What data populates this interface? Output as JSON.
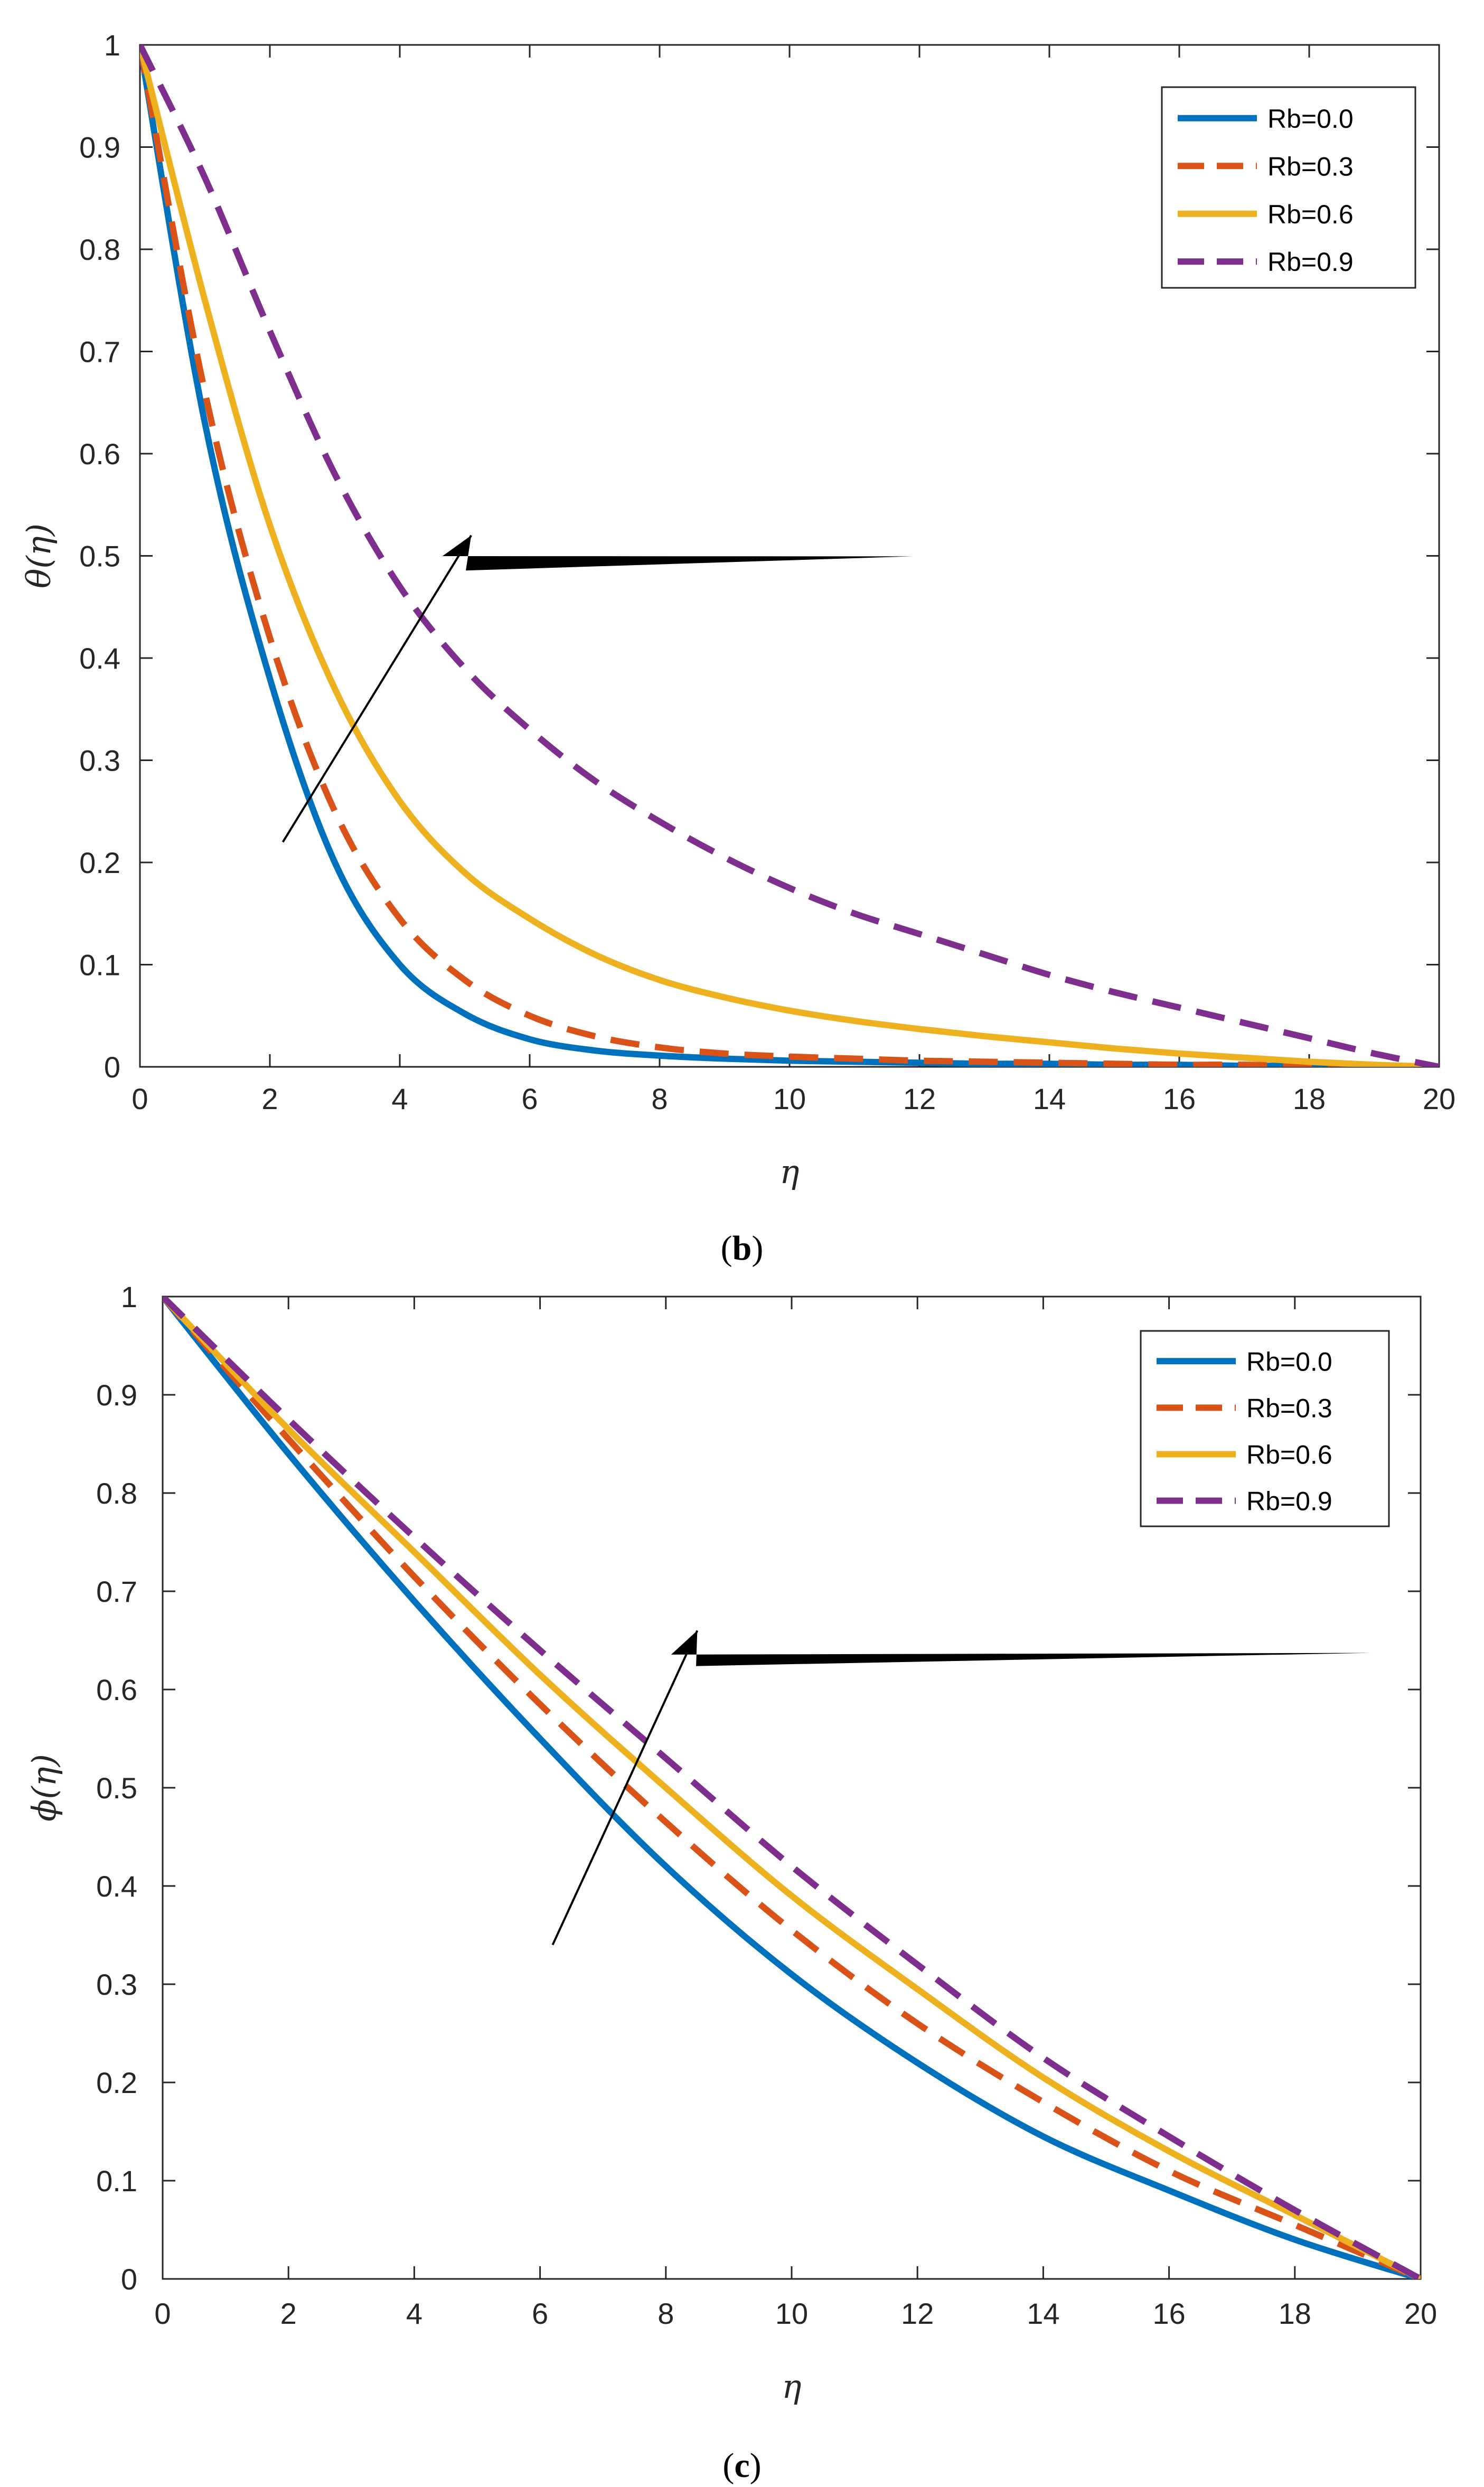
{
  "chart_data": [
    {
      "type": "line",
      "panel": "b",
      "caption": {
        "open": "(",
        "letter": "b",
        "close": ")"
      },
      "xlabel": "η",
      "ylabel": "θ(η)",
      "xlim": [
        0,
        20
      ],
      "ylim": [
        0,
        1
      ],
      "xticks": [
        0,
        2,
        4,
        6,
        8,
        10,
        12,
        14,
        16,
        18,
        20
      ],
      "yticks": [
        0,
        0.1,
        0.2,
        0.3,
        0.4,
        0.5,
        0.6,
        0.7,
        0.8,
        0.9,
        1
      ],
      "legend_position": "top-right",
      "x": [
        0,
        1,
        2,
        3,
        4,
        5,
        6,
        7,
        8,
        9,
        10,
        11,
        12,
        13,
        14,
        15,
        16,
        17,
        18,
        19,
        20
      ],
      "series": [
        {
          "name": "Rb=0.0",
          "color": "#0072BD",
          "style": "solid",
          "values": [
            1.0,
            0.63,
            0.38,
            0.2,
            0.1,
            0.052,
            0.027,
            0.016,
            0.011,
            0.008,
            0.006,
            0.005,
            0.004,
            0.003,
            0.003,
            0.002,
            0.002,
            0.001,
            0.001,
            0.0005,
            0
          ]
        },
        {
          "name": "Rb=0.3",
          "color": "#D95319",
          "style": "dashed",
          "values": [
            1.0,
            0.66,
            0.42,
            0.25,
            0.145,
            0.085,
            0.05,
            0.03,
            0.019,
            0.013,
            0.01,
            0.008,
            0.006,
            0.005,
            0.004,
            0.003,
            0.002,
            0.002,
            0.001,
            0.0005,
            0
          ]
        },
        {
          "name": "Rb=0.6",
          "color": "#EDB120",
          "style": "solid",
          "values": [
            1.0,
            0.75,
            0.53,
            0.37,
            0.26,
            0.19,
            0.145,
            0.11,
            0.085,
            0.068,
            0.055,
            0.045,
            0.037,
            0.03,
            0.024,
            0.018,
            0.013,
            0.009,
            0.005,
            0.002,
            0
          ]
        },
        {
          "name": "Rb=0.9",
          "color": "#7E2F8E",
          "style": "dashed",
          "values": [
            1.0,
            0.87,
            0.72,
            0.58,
            0.47,
            0.39,
            0.33,
            0.28,
            0.24,
            0.205,
            0.175,
            0.15,
            0.13,
            0.11,
            0.09,
            0.073,
            0.058,
            0.043,
            0.028,
            0.013,
            0
          ]
        }
      ],
      "annotation": {
        "type": "arrow",
        "from": [
          2.2,
          0.22
        ],
        "to": [
          5.1,
          0.52
        ]
      }
    },
    {
      "type": "line",
      "panel": "c",
      "caption": {
        "open": "(",
        "letter": "c",
        "close": ")"
      },
      "xlabel": "η",
      "ylabel": "ϕ(η)",
      "xlim": [
        0,
        20
      ],
      "ylim": [
        0,
        1
      ],
      "xticks": [
        0,
        2,
        4,
        6,
        8,
        10,
        12,
        14,
        16,
        18,
        20
      ],
      "yticks": [
        0,
        0.1,
        0.2,
        0.3,
        0.4,
        0.5,
        0.6,
        0.7,
        0.8,
        0.9,
        1
      ],
      "legend_position": "top-right",
      "x": [
        0,
        2,
        4,
        6,
        8,
        10,
        12,
        14,
        16,
        18,
        20
      ],
      "series": [
        {
          "name": "Rb=0.0",
          "color": "#0072BD",
          "style": "solid",
          "values": [
            1.0,
            0.84,
            0.69,
            0.55,
            0.42,
            0.31,
            0.22,
            0.145,
            0.09,
            0.04,
            0
          ]
        },
        {
          "name": "Rb=0.3",
          "color": "#D95319",
          "style": "dashed",
          "values": [
            1.0,
            0.855,
            0.715,
            0.585,
            0.465,
            0.355,
            0.26,
            0.18,
            0.11,
            0.055,
            0
          ]
        },
        {
          "name": "Rb=0.6",
          "color": "#EDB120",
          "style": "solid",
          "values": [
            1.0,
            0.865,
            0.74,
            0.615,
            0.5,
            0.39,
            0.295,
            0.205,
            0.13,
            0.065,
            0
          ]
        },
        {
          "name": "Rb=0.9",
          "color": "#7E2F8E",
          "style": "dashed",
          "values": [
            1.0,
            0.875,
            0.755,
            0.64,
            0.53,
            0.42,
            0.32,
            0.225,
            0.145,
            0.07,
            0
          ]
        }
      ],
      "annotation": {
        "type": "arrow",
        "from": [
          6.2,
          0.34
        ],
        "to": [
          8.5,
          0.66
        ]
      }
    }
  ]
}
